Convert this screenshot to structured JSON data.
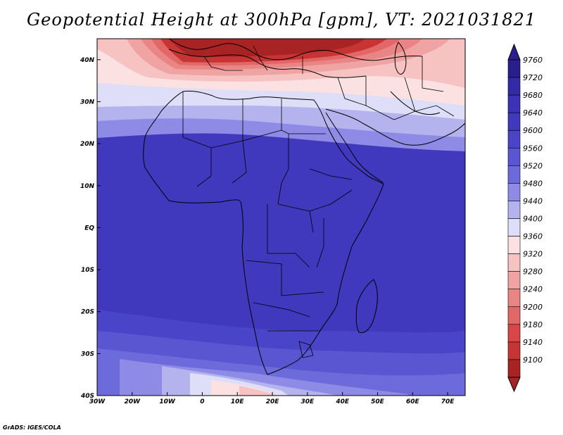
{
  "title": "Geopotential Height at 300hPa [gpm], VT: 2021031821",
  "footer": "GrADS: IGES/COLA",
  "map": {
    "region": "Africa",
    "lon_range": [
      -30,
      75
    ],
    "lat_range": [
      -40,
      45
    ],
    "x_ticks": [
      {
        "value": -30,
        "label": "30W"
      },
      {
        "value": -20,
        "label": "20W"
      },
      {
        "value": -10,
        "label": "10W"
      },
      {
        "value": 0,
        "label": "0"
      },
      {
        "value": 10,
        "label": "10E"
      },
      {
        "value": 20,
        "label": "20E"
      },
      {
        "value": 30,
        "label": "30E"
      },
      {
        "value": 40,
        "label": "40E"
      },
      {
        "value": 50,
        "label": "50E"
      },
      {
        "value": 60,
        "label": "60E"
      },
      {
        "value": 70,
        "label": "70E"
      }
    ],
    "y_ticks": [
      {
        "value": 40,
        "label": "40N"
      },
      {
        "value": 30,
        "label": "30N"
      },
      {
        "value": 20,
        "label": "20N"
      },
      {
        "value": 10,
        "label": "10N"
      },
      {
        "value": 0,
        "label": "EQ"
      },
      {
        "value": -10,
        "label": "10S"
      },
      {
        "value": -20,
        "label": "20S"
      },
      {
        "value": -30,
        "label": "30S"
      },
      {
        "value": -40,
        "label": "40S"
      }
    ]
  },
  "colorbar": {
    "levels": [
      {
        "label": "9760",
        "color": "#2a1e8e"
      },
      {
        "label": "9720",
        "color": "#332aa6"
      },
      {
        "label": "9680",
        "color": "#3b32b4"
      },
      {
        "label": "9640",
        "color": "#4038bd"
      },
      {
        "label": "9600",
        "color": "#4a44c8"
      },
      {
        "label": "9560",
        "color": "#5a56d2"
      },
      {
        "label": "9520",
        "color": "#6d6adb"
      },
      {
        "label": "9480",
        "color": "#8d8be5"
      },
      {
        "label": "9440",
        "color": "#b4b3ee"
      },
      {
        "label": "9400",
        "color": "#dedef8"
      },
      {
        "label": "9360",
        "color": "#fbe1e1"
      },
      {
        "label": "9320",
        "color": "#f6c2c2"
      },
      {
        "label": "9280",
        "color": "#efa3a3"
      },
      {
        "label": "9240",
        "color": "#e98585"
      },
      {
        "label": "9200",
        "color": "#e26767"
      },
      {
        "label": "9180",
        "color": "#d84646"
      },
      {
        "label": "9140",
        "color": "#c63434"
      },
      {
        "label": "9100",
        "color": "#a82424"
      }
    ]
  }
}
